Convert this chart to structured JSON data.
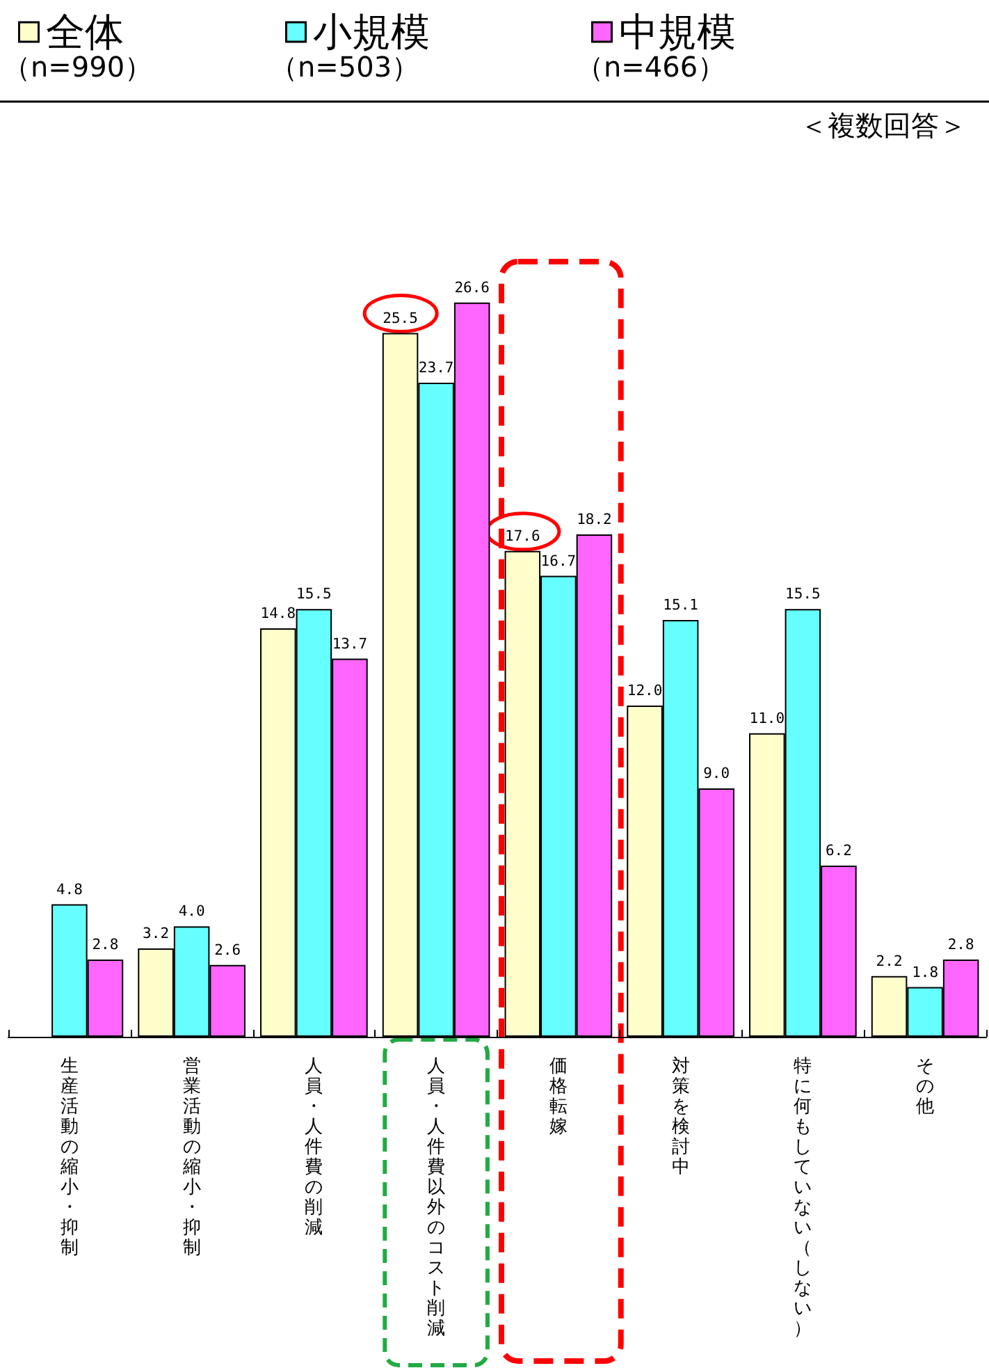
{
  "chart_data": {
    "type": "bar",
    "categories": [
      "生産活動の縮小・抑制",
      "営業活動の縮小・抑制",
      "人員・人件費の削減",
      "人員・人件費以外のコスト削減",
      "価格転嫁",
      "対策を検討中",
      "特に何もしていない（しない）",
      "その他"
    ],
    "series": [
      {
        "name": "全体",
        "color": "#ffffcc",
        "values": [
          null,
          3.2,
          14.8,
          25.5,
          17.6,
          12.0,
          11.0,
          2.2
        ],
        "value_labels": [
          null,
          "3.2",
          "14.8",
          "25.5",
          "17.6",
          "12.0",
          "11.0",
          "2.2"
        ]
      },
      {
        "name": "小規模",
        "color": "#66ffff",
        "values": [
          4.8,
          4.0,
          15.5,
          23.7,
          16.7,
          15.1,
          15.5,
          1.8
        ],
        "value_labels": [
          "4.8",
          "4.0",
          "15.5",
          "23.7",
          "16.7",
          "15.1",
          "15.5",
          "1.8"
        ]
      },
      {
        "name": "中規模",
        "color": "#ff66ff",
        "values": [
          2.8,
          2.6,
          13.7,
          26.6,
          18.2,
          9.0,
          6.2,
          2.8
        ],
        "value_labels": [
          "2.8",
          "2.6",
          "13.7",
          "26.6",
          "18.2",
          "9.0",
          "6.2",
          "2.8"
        ]
      }
    ],
    "legend": "top left",
    "annotations": [
      "（n=990）",
      "（n=503）",
      "（n=466）",
      "＜複数回答＞"
    ]
  }
}
